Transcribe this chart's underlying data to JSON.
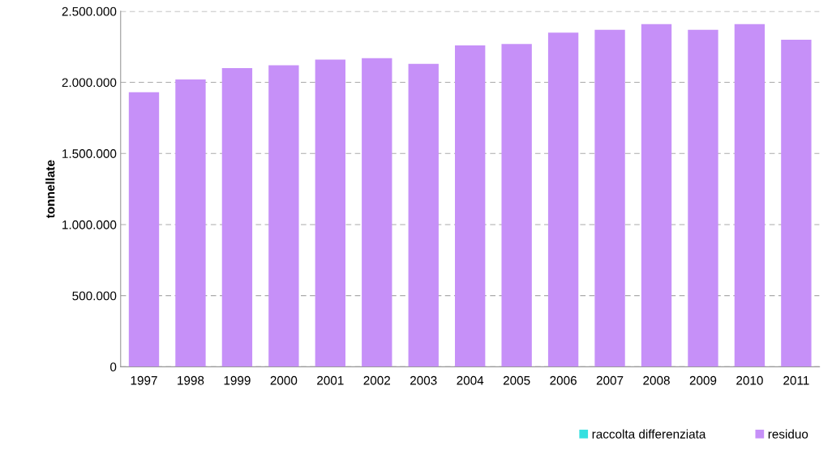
{
  "chart_data": {
    "type": "bar",
    "ylabel": "tonnellate",
    "categories": [
      "1997",
      "1998",
      "1999",
      "2000",
      "2001",
      "2002",
      "2003",
      "2004",
      "2005",
      "2006",
      "2007",
      "2008",
      "2009",
      "2010",
      "2011"
    ],
    "series": [
      {
        "name": "raccolta differenziata",
        "color": "#33e0e0",
        "values": [
          null,
          null,
          null,
          null,
          null,
          null,
          null,
          null,
          null,
          null,
          null,
          null,
          null,
          null,
          null
        ]
      },
      {
        "name": "residuo",
        "color": "#c690f8",
        "values": [
          1930000,
          2020000,
          2100000,
          2120000,
          2160000,
          2170000,
          2130000,
          2260000,
          2270000,
          2350000,
          2370000,
          2410000,
          2370000,
          2410000,
          2300000
        ]
      }
    ],
    "ylim": [
      0,
      2500000
    ],
    "yticks": [
      {
        "value": 0,
        "label": "0"
      },
      {
        "value": 500000,
        "label": "500.000"
      },
      {
        "value": 1000000,
        "label": "1.000.000"
      },
      {
        "value": 1500000,
        "label": "1.500.000"
      },
      {
        "value": 2000000,
        "label": "2.000.000"
      },
      {
        "value": 2500000,
        "label": "2.500.000"
      }
    ],
    "grid": "y",
    "legend": "bottom right"
  }
}
